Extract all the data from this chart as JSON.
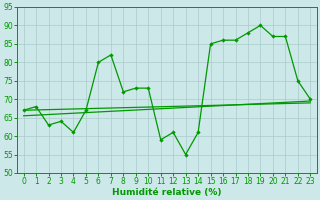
{
  "xlabel": "Humidité relative (%)",
  "xlim": [
    -0.5,
    23.5
  ],
  "ylim": [
    50,
    95
  ],
  "yticks": [
    50,
    55,
    60,
    65,
    70,
    75,
    80,
    85,
    90,
    95
  ],
  "xticks": [
    0,
    1,
    2,
    3,
    4,
    5,
    6,
    7,
    8,
    9,
    10,
    11,
    12,
    13,
    14,
    15,
    16,
    17,
    18,
    19,
    20,
    21,
    22,
    23
  ],
  "bg_color": "#cce8e8",
  "grid_color": "#aacccc",
  "line_color": "#009900",
  "main_line": {
    "x": [
      0,
      1,
      2,
      3,
      4,
      5,
      6,
      7,
      8,
      9,
      10,
      11,
      12,
      13,
      14,
      15,
      16,
      17,
      18,
      19,
      20,
      21,
      22,
      23
    ],
    "y": [
      67,
      68,
      63,
      64,
      61,
      67,
      80,
      82,
      72,
      73,
      73,
      59,
      61,
      55,
      61,
      85,
      86,
      86,
      88,
      90,
      87,
      87,
      75,
      70
    ]
  },
  "trend1": {
    "x": [
      0,
      23
    ],
    "y": [
      65.5,
      69.5
    ]
  },
  "trend2": {
    "x": [
      0,
      23
    ],
    "y": [
      67.0,
      69.0
    ]
  }
}
